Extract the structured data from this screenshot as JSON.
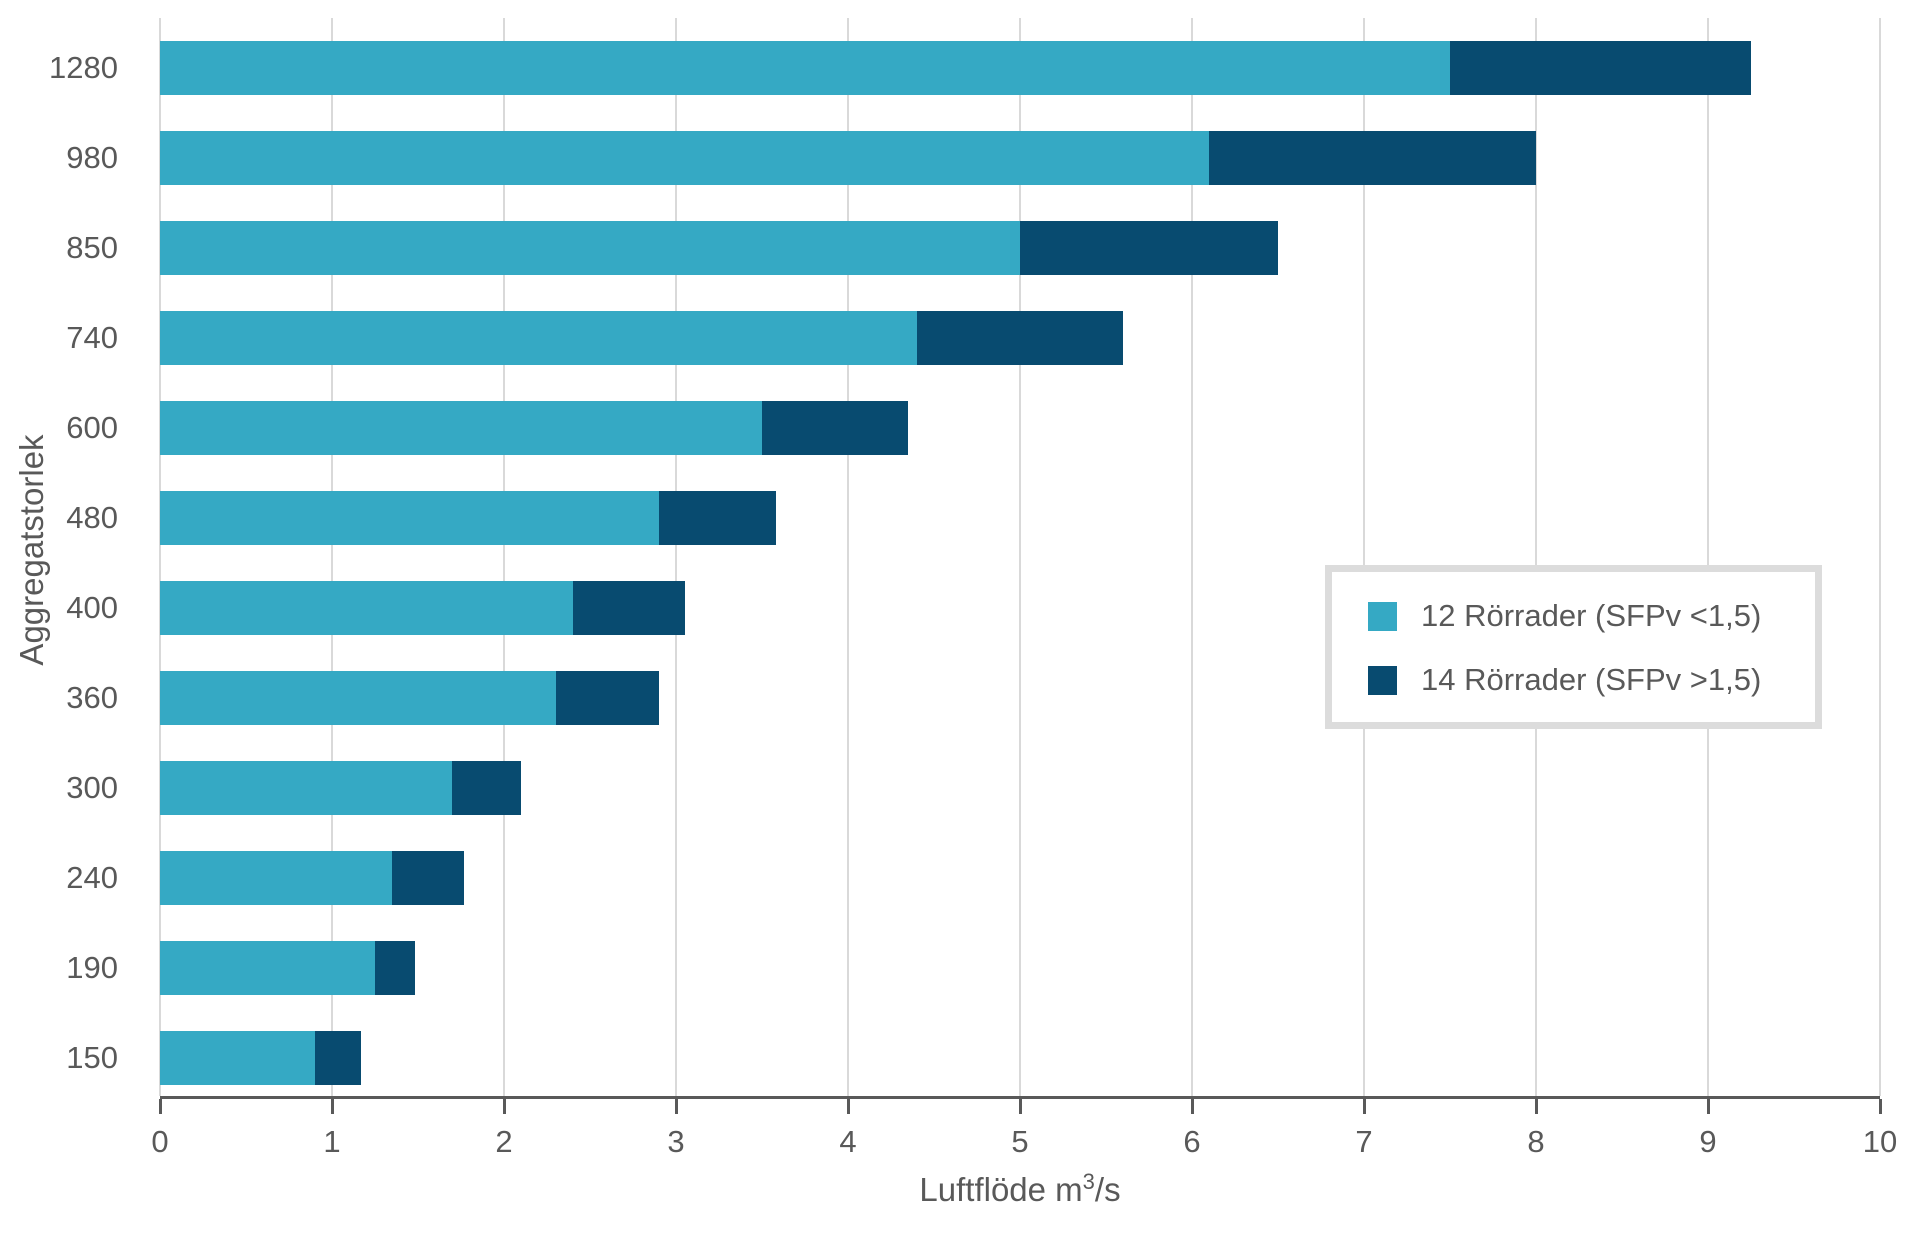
{
  "chart_data": {
    "type": "bar",
    "orientation": "horizontal",
    "stacked": true,
    "xlabel": "Luftflöde m³/s",
    "xlabel_prefix": "Luftflöde m",
    "xlabel_sup": "3",
    "xlabel_suffix": "/s",
    "ylabel": "Aggregatstorlek",
    "categories": [
      "1280",
      "980",
      "850",
      "740",
      "600",
      "480",
      "400",
      "360",
      "300",
      "240",
      "190",
      "150"
    ],
    "series": [
      {
        "name": "12 Rörrader (SFPv <1,5)",
        "color": "#35a9c4",
        "values": [
          7.5,
          6.1,
          5.0,
          4.4,
          3.5,
          2.9,
          2.4,
          2.3,
          1.7,
          1.35,
          1.25,
          0.9
        ]
      },
      {
        "name": "14 Rörrader (SFPv >1,5)",
        "color": "#084b70",
        "values": [
          1.75,
          1.9,
          1.5,
          1.2,
          0.85,
          0.68,
          0.65,
          0.6,
          0.4,
          0.42,
          0.23,
          0.27
        ]
      }
    ],
    "stacked_totals": [
      9.25,
      8.0,
      6.5,
      5.6,
      4.35,
      3.58,
      3.05,
      2.9,
      2.1,
      1.77,
      1.48,
      1.17
    ],
    "xlim": [
      0,
      10
    ],
    "xticks": [
      0,
      1,
      2,
      3,
      4,
      5,
      6,
      7,
      8,
      9,
      10
    ],
    "grid": true,
    "legend_position": "middle-right"
  },
  "legend": {
    "items": [
      {
        "label": "12 Rörrader (SFPv <1,5)",
        "color": "#35a9c4"
      },
      {
        "label": "14 Rörrader (SFPv >1,5)",
        "color": "#084b70"
      }
    ]
  },
  "colors": {
    "grid": "#d9d9d9",
    "axis": "#595959",
    "text": "#595959",
    "background": "#ffffff",
    "legend_border": "#dcdcdc"
  }
}
